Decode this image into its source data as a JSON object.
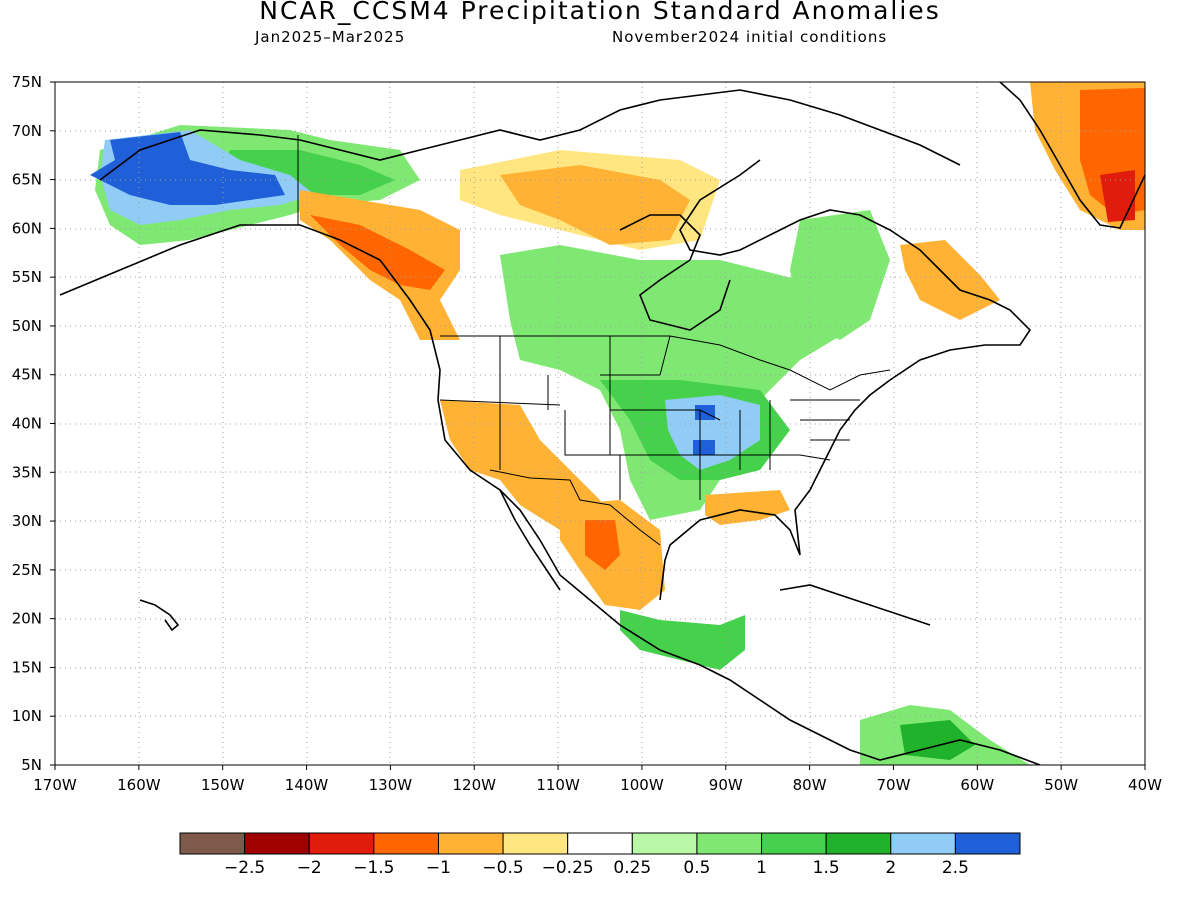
{
  "map": {
    "title": "NCAR_CCSM4 Precipitation Standard Anomalies",
    "period": "Jan2025–Mar2025",
    "initial_conditions": "November2024 initial conditions",
    "lat_labels": [
      "75N",
      "70N",
      "65N",
      "60N",
      "55N",
      "50N",
      "45N",
      "40N",
      "35N",
      "30N",
      "25N",
      "20N",
      "15N",
      "10N",
      "5N"
    ],
    "lon_labels": [
      "170W",
      "160W",
      "150W",
      "140W",
      "130W",
      "120W",
      "110W",
      "100W",
      "90W",
      "80W",
      "70W",
      "60W",
      "50W",
      "40W"
    ]
  },
  "colorbar": {
    "colors": [
      "#7f5a4c",
      "#a00000",
      "#e01c0c",
      "#ff6600",
      "#ffb233",
      "#ffe680",
      "#ffffff",
      "#b7f7a6",
      "#7fe873",
      "#46d14c",
      "#20b22a",
      "#90ccf5",
      "#1f5fd8"
    ],
    "labels": [
      "−2.5",
      "−2",
      "−1.5",
      "−1",
      "−0.5",
      "−0.25",
      "0.25",
      "0.5",
      "1",
      "1.5",
      "2",
      "2.5"
    ]
  },
  "legend_colors": {
    "strong_dry": "#e01c0c",
    "dry": "#ff6600",
    "mod_dry": "#ffb233",
    "weak_dry": "#ffe680",
    "weak_wet": "#b7f7a6",
    "mod_wet": "#7fe873",
    "wet": "#46d14c",
    "very_wet": "#20b22a",
    "extreme_wet": "#90ccf5",
    "extreme_wet2": "#1f5fd8"
  }
}
